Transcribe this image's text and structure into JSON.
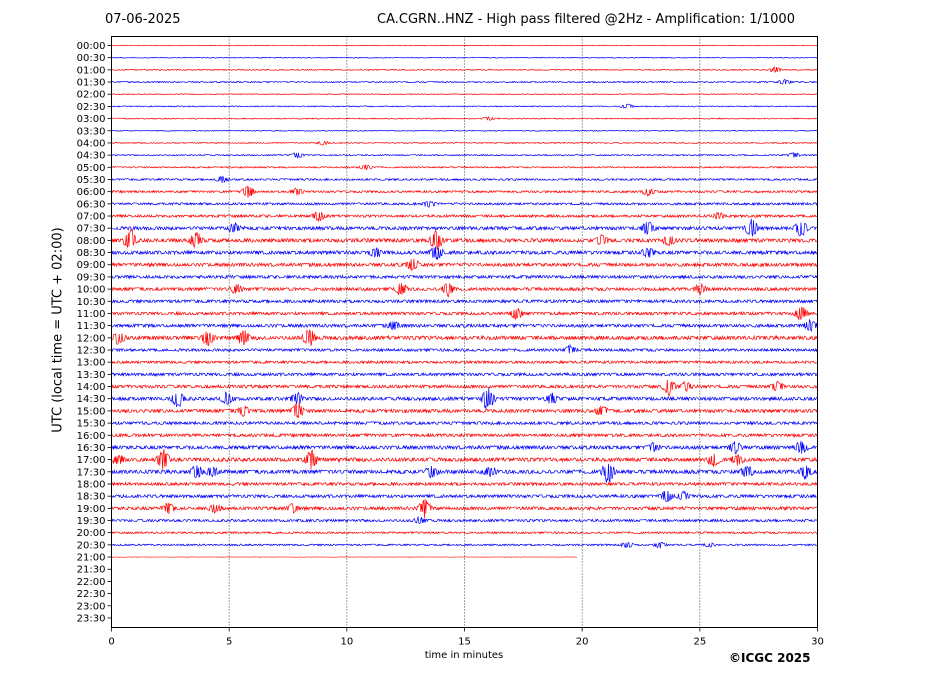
{
  "header": {
    "date": "07-06-2025",
    "title": "CA.CGRN..HNZ - High pass filtered @2Hz - Amplification: 1/1000"
  },
  "credit": "©ICGC 2025",
  "colors": {
    "odd_trace": "#ff0000",
    "even_trace": "#0000ff",
    "grid": "#000000"
  },
  "chart_data": {
    "type": "line",
    "xlabel": "time in minutes",
    "ylabel": "UTC (local time = UTC + 02:00)",
    "xlim": [
      0,
      30
    ],
    "xticks": [
      "0",
      "5",
      "10",
      "15",
      "20",
      "25",
      "30"
    ],
    "grid": "vertical dotted at 5, 10, 15, 20, 25",
    "rows": [
      "00:00",
      "00:30",
      "01:00",
      "01:30",
      "02:00",
      "02:30",
      "03:00",
      "03:30",
      "04:00",
      "04:30",
      "05:00",
      "05:30",
      "06:00",
      "06:30",
      "07:00",
      "07:30",
      "08:00",
      "08:30",
      "09:00",
      "09:30",
      "10:00",
      "10:30",
      "11:00",
      "11:30",
      "12:00",
      "12:30",
      "13:00",
      "13:30",
      "14:00",
      "14:30",
      "15:00",
      "15:30",
      "16:00",
      "16:30",
      "17:00",
      "17:30",
      "18:00",
      "18:30",
      "19:00",
      "19:30",
      "20:00",
      "20:30",
      "21:00",
      "21:30",
      "22:00",
      "22:30",
      "23:00",
      "23:30"
    ],
    "trace_end_row": "21:00",
    "trace_end_minute": 19.8,
    "noise_level": [
      0.3,
      0.4,
      0.5,
      0.6,
      0.4,
      0.5,
      0.5,
      0.4,
      0.5,
      0.6,
      0.7,
      0.9,
      1.0,
      1.1,
      1.2,
      1.6,
      1.8,
      1.7,
      1.6,
      1.4,
      1.5,
      1.4,
      1.4,
      1.5,
      1.8,
      1.3,
      1.2,
      1.4,
      1.5,
      1.6,
      1.6,
      1.4,
      1.4,
      1.7,
      1.8,
      1.8,
      1.4,
      1.5,
      1.5,
      1.2,
      0.9,
      0.8,
      0.2
    ],
    "events": [
      {
        "row": "01:00",
        "minute": 28.2,
        "amp": 3
      },
      {
        "row": "01:30",
        "minute": 28.6,
        "amp": 2.5
      },
      {
        "row": "02:30",
        "minute": 21.9,
        "amp": 2.5
      },
      {
        "row": "03:00",
        "minute": 16.0,
        "amp": 2
      },
      {
        "row": "04:00",
        "minute": 9.0,
        "amp": 2
      },
      {
        "row": "04:30",
        "minute": 7.9,
        "amp": 3
      },
      {
        "row": "04:30",
        "minute": 29.0,
        "amp": 2.5
      },
      {
        "row": "05:00",
        "minute": 10.8,
        "amp": 3
      },
      {
        "row": "05:30",
        "minute": 4.7,
        "amp": 3
      },
      {
        "row": "06:00",
        "minute": 5.8,
        "amp": 6
      },
      {
        "row": "06:00",
        "minute": 7.9,
        "amp": 4
      },
      {
        "row": "06:00",
        "minute": 22.8,
        "amp": 4
      },
      {
        "row": "06:30",
        "minute": 13.5,
        "amp": 3
      },
      {
        "row": "07:00",
        "minute": 8.8,
        "amp": 5
      },
      {
        "row": "07:00",
        "minute": 25.8,
        "amp": 3
      },
      {
        "row": "07:30",
        "minute": 5.2,
        "amp": 5
      },
      {
        "row": "07:30",
        "minute": 22.8,
        "amp": 7
      },
      {
        "row": "07:30",
        "minute": 27.2,
        "amp": 9
      },
      {
        "row": "07:30",
        "minute": 29.3,
        "amp": 9
      },
      {
        "row": "08:00",
        "minute": 0.8,
        "amp": 12
      },
      {
        "row": "08:00",
        "minute": 3.6,
        "amp": 8
      },
      {
        "row": "08:00",
        "minute": 13.8,
        "amp": 10
      },
      {
        "row": "08:00",
        "minute": 20.8,
        "amp": 5
      },
      {
        "row": "08:00",
        "minute": 23.7,
        "amp": 5
      },
      {
        "row": "08:30",
        "minute": 11.2,
        "amp": 5
      },
      {
        "row": "08:30",
        "minute": 13.8,
        "amp": 8
      },
      {
        "row": "08:30",
        "minute": 22.8,
        "amp": 5
      },
      {
        "row": "09:00",
        "minute": 12.8,
        "amp": 6
      },
      {
        "row": "10:00",
        "minute": 5.3,
        "amp": 5
      },
      {
        "row": "10:00",
        "minute": 12.3,
        "amp": 6
      },
      {
        "row": "10:00",
        "minute": 14.3,
        "amp": 8
      },
      {
        "row": "10:00",
        "minute": 25.0,
        "amp": 5
      },
      {
        "row": "11:00",
        "minute": 17.2,
        "amp": 6
      },
      {
        "row": "11:00",
        "minute": 29.3,
        "amp": 8
      },
      {
        "row": "11:30",
        "minute": 12.0,
        "amp": 4
      },
      {
        "row": "11:30",
        "minute": 29.7,
        "amp": 6
      },
      {
        "row": "12:00",
        "minute": 0.3,
        "amp": 6
      },
      {
        "row": "12:00",
        "minute": 4.1,
        "amp": 7
      },
      {
        "row": "12:00",
        "minute": 5.6,
        "amp": 8
      },
      {
        "row": "12:00",
        "minute": 8.4,
        "amp": 9
      },
      {
        "row": "12:30",
        "minute": 19.5,
        "amp": 4
      },
      {
        "row": "14:00",
        "minute": 23.7,
        "amp": 9
      },
      {
        "row": "14:00",
        "minute": 24.4,
        "amp": 5
      },
      {
        "row": "14:00",
        "minute": 28.3,
        "amp": 5
      },
      {
        "row": "14:30",
        "minute": 2.8,
        "amp": 9
      },
      {
        "row": "14:30",
        "minute": 4.9,
        "amp": 6
      },
      {
        "row": "14:30",
        "minute": 7.9,
        "amp": 6
      },
      {
        "row": "14:30",
        "minute": 16.0,
        "amp": 13
      },
      {
        "row": "14:30",
        "minute": 18.7,
        "amp": 5
      },
      {
        "row": "15:00",
        "minute": 5.6,
        "amp": 5
      },
      {
        "row": "15:00",
        "minute": 7.9,
        "amp": 9
      },
      {
        "row": "15:00",
        "minute": 20.8,
        "amp": 5
      },
      {
        "row": "16:30",
        "minute": 23.0,
        "amp": 5
      },
      {
        "row": "16:30",
        "minute": 26.5,
        "amp": 6
      },
      {
        "row": "16:30",
        "minute": 29.3,
        "amp": 6
      },
      {
        "row": "17:00",
        "minute": 0.3,
        "amp": 5
      },
      {
        "row": "17:00",
        "minute": 2.2,
        "amp": 10
      },
      {
        "row": "17:00",
        "minute": 8.5,
        "amp": 9
      },
      {
        "row": "17:00",
        "minute": 25.6,
        "amp": 7
      },
      {
        "row": "17:00",
        "minute": 26.6,
        "amp": 5
      },
      {
        "row": "17:30",
        "minute": 3.6,
        "amp": 6
      },
      {
        "row": "17:30",
        "minute": 4.3,
        "amp": 5
      },
      {
        "row": "17:30",
        "minute": 13.6,
        "amp": 6
      },
      {
        "row": "17:30",
        "minute": 16.1,
        "amp": 5
      },
      {
        "row": "17:30",
        "minute": 21.1,
        "amp": 12
      },
      {
        "row": "17:30",
        "minute": 27.0,
        "amp": 6
      },
      {
        "row": "17:30",
        "minute": 29.5,
        "amp": 7
      },
      {
        "row": "18:30",
        "minute": 23.6,
        "amp": 6
      },
      {
        "row": "18:30",
        "minute": 24.3,
        "amp": 5
      },
      {
        "row": "19:00",
        "minute": 2.4,
        "amp": 6
      },
      {
        "row": "19:00",
        "minute": 4.4,
        "amp": 5
      },
      {
        "row": "19:00",
        "minute": 7.7,
        "amp": 5
      },
      {
        "row": "19:00",
        "minute": 13.3,
        "amp": 9
      },
      {
        "row": "19:30",
        "minute": 13.1,
        "amp": 3
      },
      {
        "row": "20:30",
        "minute": 21.9,
        "amp": 3
      },
      {
        "row": "20:30",
        "minute": 23.3,
        "amp": 3
      },
      {
        "row": "20:30",
        "minute": 25.4,
        "amp": 2
      }
    ]
  }
}
